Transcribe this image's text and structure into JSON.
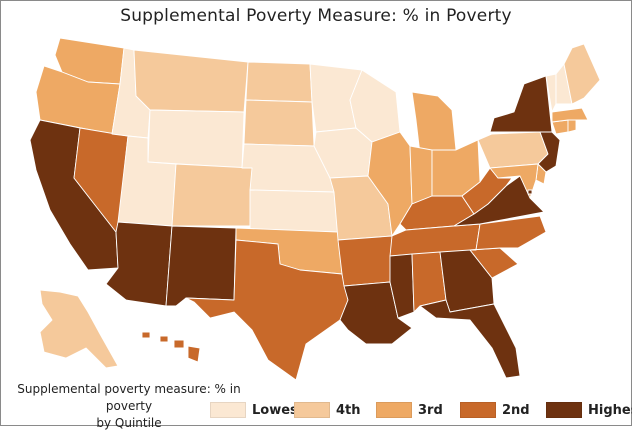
{
  "title": "Supplemental Poverty Measure: % in Poverty",
  "caption": {
    "line1": "Supplemental poverty measure: % in poverty",
    "line2": "by Quintile"
  },
  "legend": [
    {
      "label": "Lowest",
      "color": "#fbe8d3",
      "level": 1
    },
    {
      "label": "4th",
      "color": "#f5c99b",
      "level": 2
    },
    {
      "label": "3rd",
      "color": "#eea964",
      "level": 3
    },
    {
      "label": "2nd",
      "color": "#c8692a",
      "level": 4
    },
    {
      "label": "Highest",
      "color": "#6e3210",
      "level": 5
    }
  ],
  "states": {
    "WA": 3,
    "OR": 3,
    "CA": 5,
    "NV": 4,
    "ID": 1,
    "MT": 2,
    "WY": 1,
    "UT": 1,
    "AZ": 5,
    "CO": 2,
    "NM": 5,
    "ND": 2,
    "SD": 2,
    "NE": 1,
    "KS": 1,
    "OK": 3,
    "TX": 4,
    "MN": 1,
    "IA": 1,
    "MO": 2,
    "AR": 4,
    "LA": 5,
    "WI": 1,
    "IL": 3,
    "MI": 3,
    "IN": 3,
    "OH": 3,
    "KY": 4,
    "TN": 4,
    "MS": 5,
    "AL": 4,
    "GA": 5,
    "FL": 5,
    "SC": 4,
    "NC": 4,
    "VA": 5,
    "WV": 4,
    "PA": 2,
    "NY": 5,
    "NJ": 5,
    "DE": 3,
    "MD": 3,
    "CT": 3,
    "RI": 3,
    "MA": 3,
    "VT": 1,
    "NH": 1,
    "ME": 2,
    "AK": 2,
    "HI": 4,
    "DC": 5
  }
}
